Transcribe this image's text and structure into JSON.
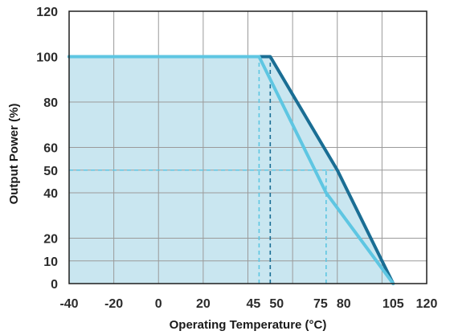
{
  "chart_data": {
    "type": "line",
    "xlabel": "Operating Temperature (°C)",
    "ylabel": "Output Power (%)",
    "xlim": [
      -40,
      120
    ],
    "ylim": [
      0,
      120
    ],
    "x_ticks": [
      -40,
      -20,
      0,
      20,
      45,
      50,
      75,
      80,
      105,
      120
    ],
    "x_tick_labels": [
      "-40",
      "-20",
      "0",
      "20",
      "45",
      "50",
      "75",
      "80",
      "105",
      "120"
    ],
    "x_grid": [
      -40,
      -20,
      0,
      20,
      40,
      60,
      80,
      100,
      120
    ],
    "y_ticks": [
      0,
      10,
      20,
      40,
      50,
      60,
      80,
      100,
      120
    ],
    "y_grid": [
      0,
      10,
      20,
      40,
      50,
      60,
      80,
      100,
      120
    ],
    "grid": true,
    "series": [
      {
        "color": "#1a6e94",
        "x": [
          -40,
          50,
          80,
          105
        ],
        "y": [
          100,
          100,
          50,
          0
        ]
      },
      {
        "color": "#5ec6e2",
        "x": [
          -40,
          45,
          75,
          105
        ],
        "y": [
          100,
          100,
          40,
          0
        ]
      }
    ],
    "fill_color": "#c9e6f0",
    "reference_lines": [
      {
        "color": "#1a6e94",
        "x": [
          50,
          50
        ],
        "y": [
          0,
          100
        ]
      },
      {
        "color": "#5ec6e2",
        "x": [
          45,
          45
        ],
        "y": [
          0,
          100
        ]
      },
      {
        "color": "#5ec6e2",
        "x": [
          75,
          75
        ],
        "y": [
          0,
          50
        ]
      },
      {
        "color": "#5ec6e2",
        "x": [
          -40,
          80
        ],
        "y": [
          50,
          50
        ]
      }
    ]
  }
}
